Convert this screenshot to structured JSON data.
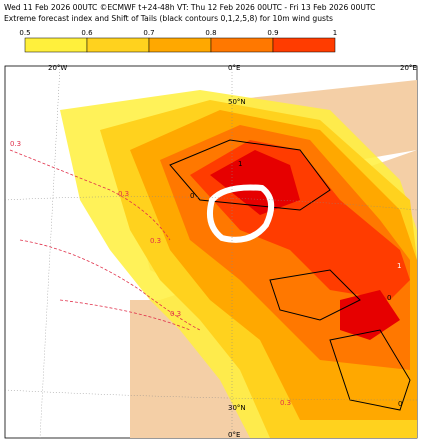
{
  "header": {
    "line1": "Wed 11 Feb 2026 00UTC ©ECMWF t+24-48h  VT: Thu 12 Feb 2026 00UTC - Fri 13 Feb 2026 00UTC",
    "line2": "Extreme forecast index and Shift of Tails (black contours 0,1,2,5,8) for 10m wind gusts"
  },
  "colorbar": {
    "labels": [
      "0.5",
      "0.6",
      "0.7",
      "0.8",
      "0.9",
      "1"
    ],
    "colors": [
      "#fff03c",
      "#ffd21e",
      "#ffa800",
      "#ff7800",
      "#ff3c00"
    ]
  },
  "map": {
    "grid_labels": [
      "20°W",
      "0°E",
      "20°E",
      "50°N",
      "30°N",
      "0°E"
    ],
    "contour_labels": [
      "0.3",
      "0.3",
      "0.3",
      "0.3",
      "0.3",
      "1",
      "0",
      "1",
      "0",
      "0"
    ]
  }
}
